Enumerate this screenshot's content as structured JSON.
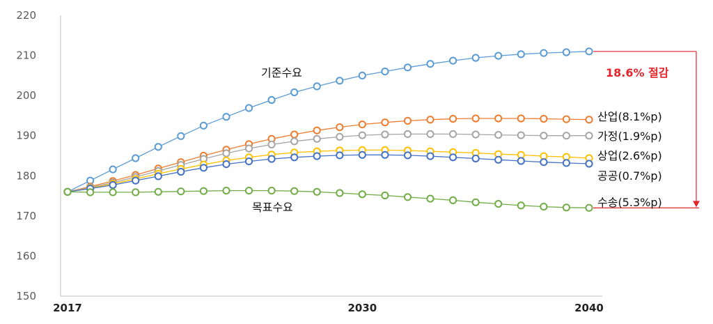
{
  "chart_data": {
    "type": "line",
    "x": [
      2017,
      2018,
      2019,
      2020,
      2021,
      2022,
      2023,
      2024,
      2025,
      2026,
      2027,
      2028,
      2029,
      2030,
      2031,
      2032,
      2033,
      2034,
      2035,
      2036,
      2037,
      2038,
      2039,
      2040
    ],
    "x_tick_labels": [
      "2017",
      "2030",
      "2040"
    ],
    "ylim": [
      150,
      220
    ],
    "y_ticks": [
      150,
      160,
      170,
      180,
      190,
      200,
      210,
      220
    ],
    "grid": false,
    "legend": "none",
    "series": [
      {
        "name": "기준수요",
        "color": "#5b9bd5",
        "values": [
          176,
          178.8,
          181.6,
          184.4,
          187.2,
          189.9,
          192.5,
          194.7,
          196.9,
          198.9,
          200.8,
          202.3,
          203.7,
          205,
          206,
          207,
          207.9,
          208.7,
          209.4,
          209.9,
          210.3,
          210.6,
          210.8,
          211
        ]
      },
      {
        "name": "산업",
        "color": "#ed7d31",
        "values": [
          176,
          177.3,
          178.7,
          180.2,
          181.8,
          183.4,
          185,
          186.5,
          187.9,
          189.2,
          190.3,
          191.3,
          192.1,
          192.8,
          193.3,
          193.7,
          194,
          194.2,
          194.3,
          194.3,
          194.3,
          194.2,
          194.1,
          194
        ]
      },
      {
        "name": "가정",
        "color": "#a5a5a5",
        "values": [
          176,
          177.1,
          178.3,
          179.7,
          181.2,
          182.7,
          184.2,
          185.6,
          186.8,
          187.8,
          188.6,
          189.2,
          189.7,
          190.1,
          190.3,
          190.4,
          190.4,
          190.4,
          190.3,
          190.2,
          190.1,
          190,
          190,
          190
        ]
      },
      {
        "name": "상업",
        "color": "#ffc000",
        "values": [
          176,
          176.9,
          178,
          179.2,
          180.5,
          181.7,
          182.8,
          183.8,
          184.6,
          185.3,
          185.8,
          186.1,
          186.3,
          186.4,
          186.4,
          186.3,
          186.1,
          185.9,
          185.7,
          185.4,
          185.2,
          184.9,
          184.7,
          184.4
        ]
      },
      {
        "name": "공공",
        "color": "#4472c4",
        "values": [
          176,
          176.8,
          177.7,
          178.8,
          179.9,
          181,
          182,
          182.9,
          183.6,
          184.2,
          184.6,
          184.9,
          185.1,
          185.2,
          185.2,
          185.1,
          184.9,
          184.6,
          184.3,
          184,
          183.7,
          183.4,
          183.2,
          183
        ]
      },
      {
        "name": "목표수요",
        "color": "#70ad47",
        "values": [
          176,
          175.9,
          175.9,
          175.9,
          176,
          176.1,
          176.2,
          176.3,
          176.3,
          176.3,
          176.2,
          176,
          175.7,
          175.4,
          175.1,
          174.7,
          174.3,
          173.9,
          173.4,
          173,
          172.6,
          172.3,
          172.1,
          172
        ]
      }
    ],
    "annotations": {
      "baseline_label": "기준수요",
      "target_label": "목표수요",
      "reduction_label": "18.6% 절감",
      "end_labels": [
        "산업(8.1%p)",
        "가정(1.9%p)",
        "상업(2.6%p)",
        "공공(0.7%p)",
        "수송(5.3%p)"
      ]
    },
    "colors": {
      "reduction": "#e3242b",
      "axis": "#bfbfbf",
      "tick_text": "#595959"
    }
  }
}
